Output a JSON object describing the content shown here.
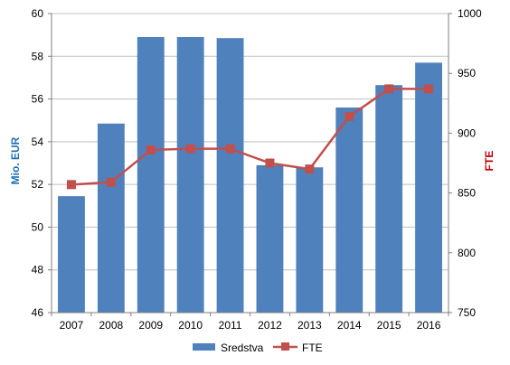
{
  "chart_data": {
    "type": "bar",
    "categories": [
      "2007",
      "2008",
      "2009",
      "2010",
      "2011",
      "2012",
      "2013",
      "2014",
      "2015",
      "2016"
    ],
    "series": [
      {
        "name": "Sredstva",
        "type": "bar",
        "axis": "left",
        "color": "#4F81BD",
        "values": [
          51.45,
          54.85,
          58.9,
          58.9,
          58.85,
          52.9,
          52.8,
          55.6,
          56.65,
          57.7
        ]
      },
      {
        "name": "FTE",
        "type": "line",
        "axis": "right",
        "color": "#C0504D",
        "values": [
          857,
          859,
          886,
          887,
          887,
          875,
          870,
          914,
          937,
          937
        ]
      }
    ],
    "title": "",
    "ylabel": "Mio. EUR",
    "y2label": "FTE",
    "ylim": [
      46,
      60
    ],
    "y2lim": [
      750,
      1000
    ],
    "yticks": [
      "46",
      "48",
      "50",
      "52",
      "54",
      "56",
      "58",
      "60"
    ],
    "y2ticks": [
      "750",
      "800",
      "850",
      "900",
      "950",
      "1000"
    ],
    "grid": true,
    "legend_position": "bottom",
    "left_axis_color": "#1F6FB5",
    "right_axis_color": "#C00000"
  }
}
